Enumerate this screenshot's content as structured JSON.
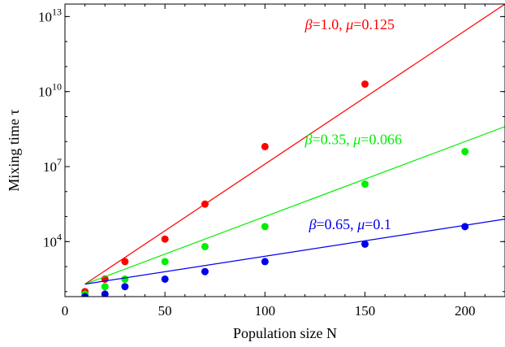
{
  "chart_data": {
    "type": "scatter",
    "xlabel": "Population size N",
    "ylabel": "Mixing time τ",
    "xlim": [
      0,
      220
    ],
    "ylim_log10": [
      1.8,
      13.5
    ],
    "y_scale": "log",
    "x_ticks": [
      0,
      50,
      100,
      150,
      200
    ],
    "y_ticks": [
      {
        "base": "10",
        "exp": "4",
        "value_log10": 4
      },
      {
        "base": "10",
        "exp": "7",
        "value_log10": 7
      },
      {
        "base": "10",
        "exp": "10",
        "value_log10": 10
      },
      {
        "base": "10",
        "exp": "13",
        "value_log10": 13
      }
    ],
    "grid": false,
    "series": [
      {
        "name": "β=1.0, μ=0.125",
        "color": "#ff0000",
        "points": [
          [
            10,
            2
          ],
          [
            20,
            2.5
          ],
          [
            30,
            3.2
          ],
          [
            50,
            4.1
          ],
          [
            70,
            5.5
          ],
          [
            100,
            7.8
          ],
          [
            150,
            10.3
          ]
        ],
        "fit_line": {
          "from": [
            10,
            2.3
          ],
          "to": [
            220,
            13.5
          ]
        }
      },
      {
        "name": "β=0.35, μ=0.066",
        "color": "#00ee00",
        "points": [
          [
            10,
            1.9
          ],
          [
            20,
            2.2
          ],
          [
            30,
            2.5
          ],
          [
            50,
            3.2
          ],
          [
            70,
            3.8
          ],
          [
            100,
            4.6
          ],
          [
            150,
            6.3
          ],
          [
            200,
            7.6
          ]
        ],
        "fit_line": {
          "from": [
            10,
            2.3
          ],
          "to": [
            220,
            8.6
          ]
        }
      },
      {
        "name": "β=0.65, μ=0.1",
        "color": "#0000ee",
        "points": [
          [
            10,
            1.8
          ],
          [
            20,
            1.9
          ],
          [
            30,
            2.2
          ],
          [
            50,
            2.5
          ],
          [
            70,
            2.8
          ],
          [
            100,
            3.2
          ],
          [
            150,
            3.9
          ],
          [
            200,
            4.6
          ]
        ],
        "fit_line": {
          "from": [
            10,
            2.3
          ],
          "to": [
            220,
            4.9
          ]
        }
      }
    ],
    "annotations": [
      {
        "series": 0,
        "parts": [
          "β",
          "=1.0, ",
          "μ",
          "=0.125"
        ],
        "at": [
          120,
          12.5
        ]
      },
      {
        "series": 1,
        "parts": [
          "β",
          "=0.35, ",
          "μ",
          "=0.066"
        ],
        "at": [
          120,
          7.9
        ]
      },
      {
        "series": 2,
        "parts": [
          "β",
          "=0.65, ",
          "μ",
          "=0.1"
        ],
        "at": [
          122,
          4.5
        ]
      }
    ]
  }
}
